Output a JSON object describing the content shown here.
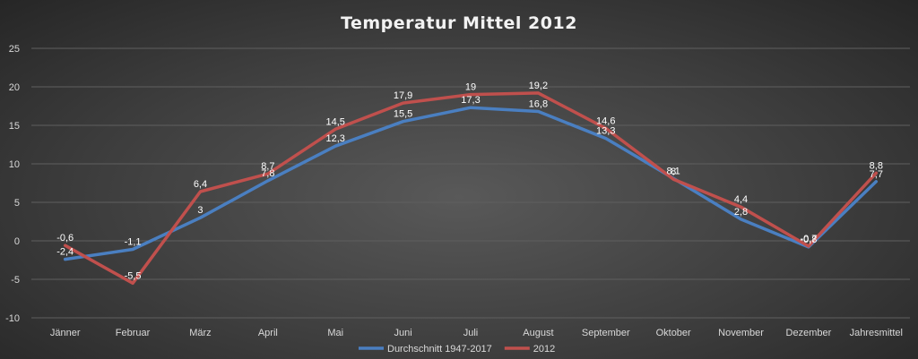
{
  "chart_data": {
    "type": "line",
    "title": "Temperatur Mittel 2012",
    "categories": [
      "Jänner",
      "Februar",
      "März",
      "April",
      "Mai",
      "Juni",
      "Juli",
      "August",
      "September",
      "Oktober",
      "November",
      "Dezember",
      "Jahresmittel"
    ],
    "ylim": [
      -10,
      25
    ],
    "yticks": [
      "-10",
      "-5",
      "0",
      "5",
      "10",
      "15",
      "20",
      "25"
    ],
    "ytick_values": [
      -10,
      -5,
      0,
      5,
      10,
      15,
      20,
      25
    ],
    "grid": true,
    "legend": "bottom",
    "series": [
      {
        "name": "Durchschnitt 1947-2017",
        "color": "#4a7fc1",
        "values": [
          -2.4,
          -1.1,
          3,
          7.8,
          12.3,
          15.5,
          17.3,
          16.8,
          13.3,
          8.1,
          2.8,
          -0.8,
          7.7
        ],
        "labels": [
          "-2,4",
          "-1,1",
          "3",
          "7,8",
          "12,3",
          "15,5",
          "17,3",
          "16,8",
          "13,3",
          "8,1",
          "2,8",
          "-0,8",
          "7,7"
        ]
      },
      {
        "name": "2012",
        "color": "#c0504d",
        "values": [
          -0.6,
          -5.5,
          6.4,
          8.7,
          14.5,
          17.9,
          19,
          19.2,
          14.6,
          8,
          4.4,
          -0.7,
          8.8
        ],
        "labels": [
          "-0,6",
          "-5,5",
          "6,4",
          "8,7",
          "14,5",
          "17,9",
          "19",
          "19,2",
          "14,6",
          "8",
          "4,4",
          "-0,7",
          "8,8"
        ]
      }
    ]
  }
}
